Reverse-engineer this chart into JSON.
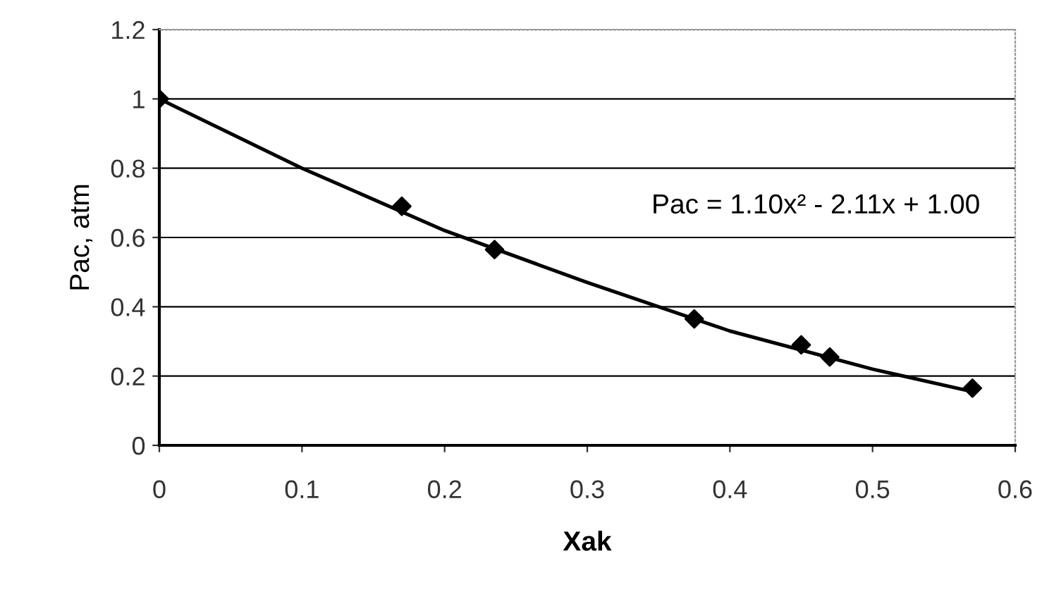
{
  "chart_data": {
    "type": "scatter",
    "xlabel": "Xak",
    "ylabel": "Pac, atm",
    "series": [
      {
        "color": "#000000",
        "marker": "diamond",
        "x": [
          0,
          0.17,
          0.235,
          0.375,
          0.45,
          0.47,
          0.57
        ],
        "values": [
          1.0,
          0.69,
          0.565,
          0.365,
          0.29,
          0.255,
          0.165
        ]
      },
      {
        "type": "line",
        "color": "#000000",
        "marker": "none",
        "x": [
          0,
          0.1,
          0.2,
          0.3,
          0.4,
          0.5,
          0.57
        ],
        "values": [
          1.0,
          0.8,
          0.62,
          0.47,
          0.33,
          0.22,
          0.155
        ]
      }
    ],
    "annotations": [
      "Pac = 1.10x² - 2.11x + 1.00"
    ],
    "xlim": [
      0,
      0.6
    ],
    "xticks": [
      0,
      0.1,
      0.2,
      0.3,
      0.4,
      0.5,
      0.6
    ],
    "ylim": [
      0,
      1.2
    ],
    "yticks": [
      0,
      0.2,
      0.4,
      0.6,
      0.8,
      1,
      1.2
    ],
    "grid": "y",
    "legend": false
  }
}
